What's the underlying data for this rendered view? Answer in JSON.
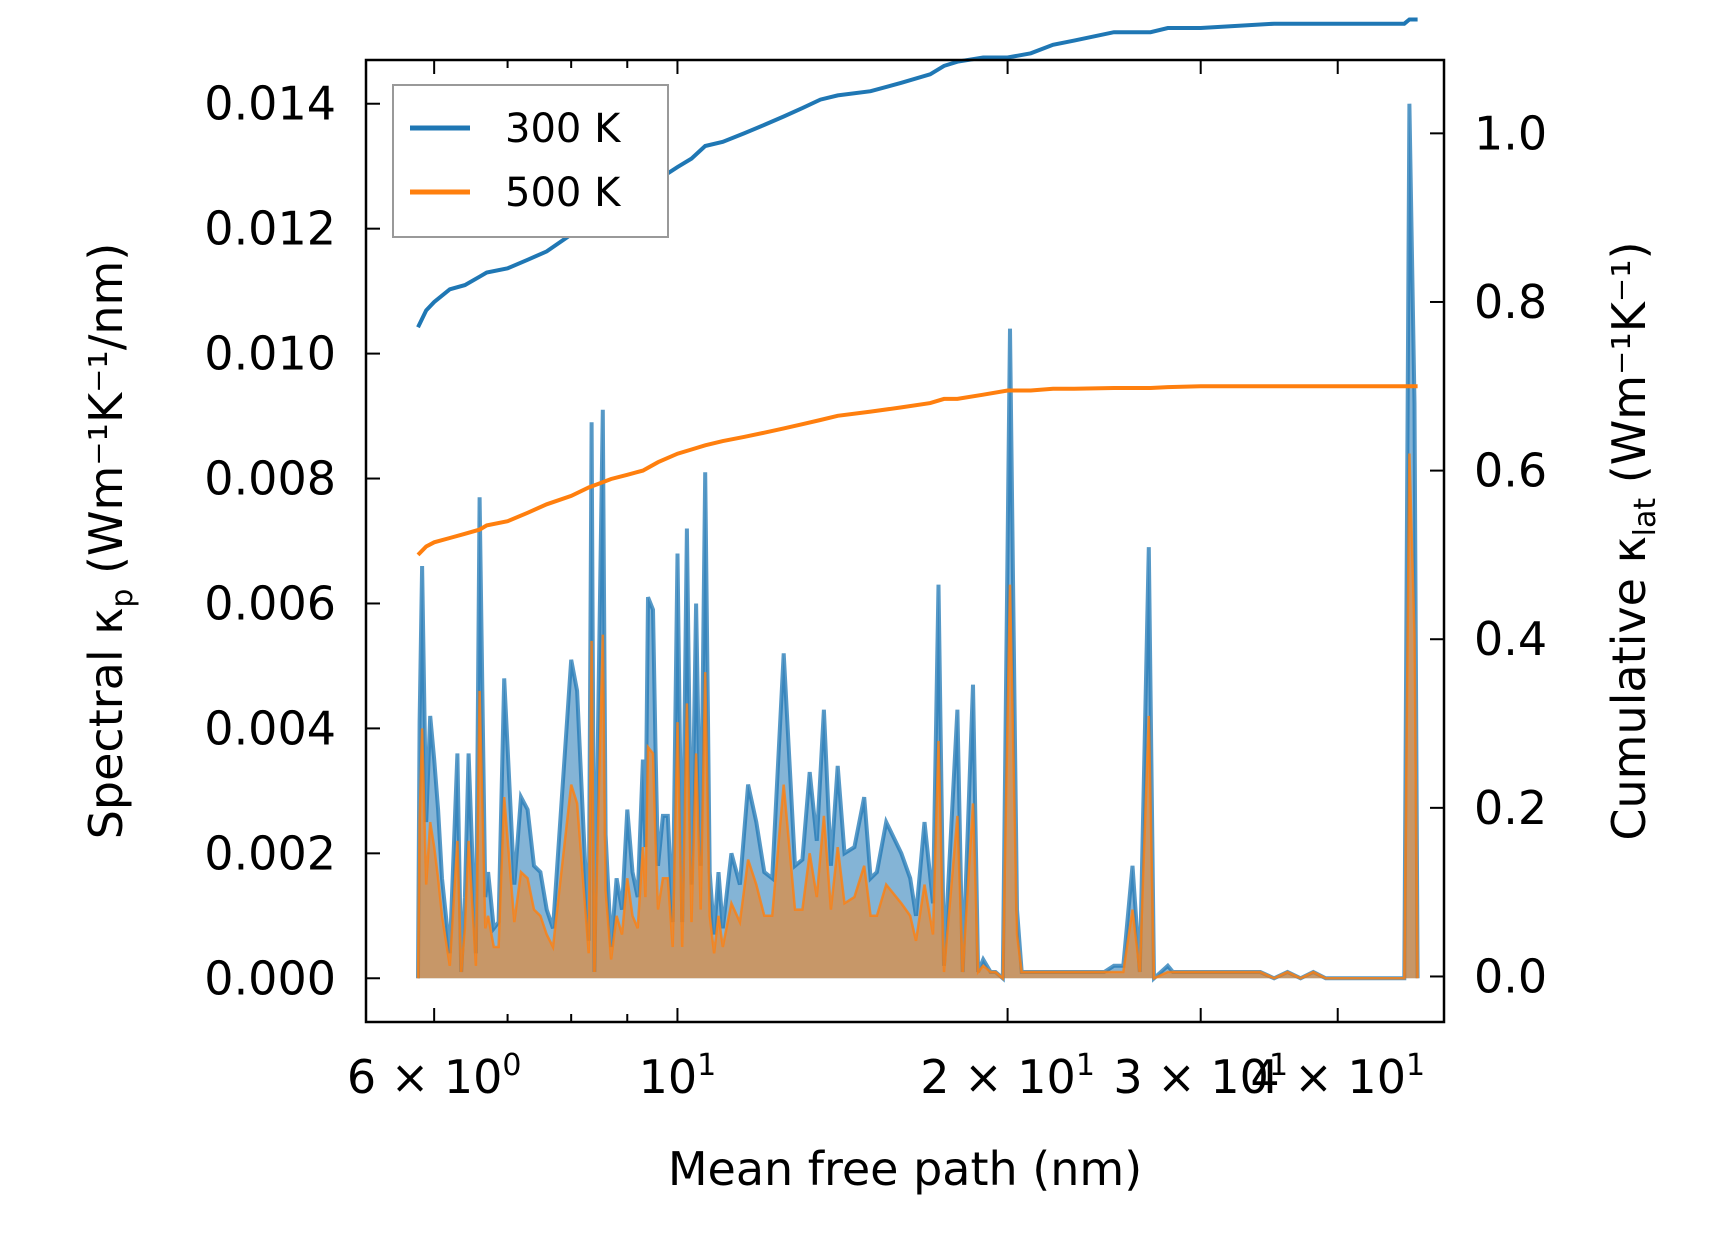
{
  "chart_data": {
    "type": "area+line",
    "xscale": "log",
    "xlabel": "Mean free path (nm)",
    "xlim": [
      5.2,
      50
    ],
    "x_ticks": [
      {
        "value": 6,
        "base": "6 × 10",
        "exp": "0"
      },
      {
        "value": 10,
        "base": "10",
        "exp": "1"
      },
      {
        "value": 20,
        "base": "2 × 10",
        "exp": "1"
      },
      {
        "value": 30,
        "base": "3 × 10",
        "exp": "1"
      },
      {
        "value": 40,
        "base": "4 × 10",
        "exp": "1"
      }
    ],
    "left_axis": {
      "label_main": "Spectral κ",
      "label_sub": "p",
      "label_units": " (Wm⁻¹K⁻¹/nm)",
      "ylim": [
        -0.0007,
        0.0147
      ],
      "ticks": [
        "0.000",
        "0.002",
        "0.004",
        "0.006",
        "0.008",
        "0.010",
        "0.012",
        "0.014"
      ]
    },
    "right_axis": {
      "label_main": "Cumulative κ",
      "label_sub": "lat",
      "label_units": " (Wm⁻¹K⁻¹)",
      "ylim": [
        -0.054,
        1.087
      ],
      "ticks": [
        "0.0",
        "0.2",
        "0.4",
        "0.6",
        "0.8",
        "1.0"
      ]
    },
    "legend": {
      "position": "top-left",
      "entries": [
        "300 K",
        "500 K"
      ]
    },
    "colors": {
      "300 K": "#1f77b4",
      "500 K": "#ff7f0e"
    },
    "spectral_x": [
      5.8,
      5.82,
      5.85,
      5.9,
      5.95,
      6.0,
      6.05,
      6.1,
      6.2,
      6.3,
      6.35,
      6.4,
      6.45,
      6.55,
      6.6,
      6.68,
      6.72,
      6.8,
      6.87,
      6.95,
      7.1,
      7.2,
      7.3,
      7.4,
      7.5,
      7.6,
      7.7,
      8.0,
      8.1,
      8.3,
      8.35,
      8.4,
      8.55,
      8.6,
      8.7,
      8.8,
      8.9,
      9.0,
      9.1,
      9.2,
      9.3,
      9.35,
      9.4,
      9.5,
      9.55,
      9.6,
      9.7,
      9.8,
      9.9,
      10.0,
      10.1,
      10.2,
      10.3,
      10.4,
      10.5,
      10.6,
      10.7,
      10.8,
      10.9,
      11.0,
      11.2,
      11.4,
      11.6,
      11.8,
      12.0,
      12.2,
      12.5,
      12.8,
      13.0,
      13.2,
      13.4,
      13.6,
      13.8,
      14.0,
      14.2,
      14.5,
      14.8,
      15.0,
      15.2,
      15.5,
      16.0,
      16.3,
      16.5,
      16.8,
      17.1,
      17.3,
      17.5,
      18.0,
      18.2,
      18.6,
      18.8,
      19.0,
      19.3,
      19.5,
      19.8,
      20.1,
      20.4,
      20.6,
      20.8,
      21.0,
      21.4,
      21.8,
      22.1,
      22.5,
      23.0,
      23.5,
      24.0,
      24.5,
      25.0,
      25.5,
      26.0,
      26.4,
      26.9,
      27.2,
      28.0,
      28.3,
      28.6,
      29.0,
      29.5,
      30.0,
      31.0,
      32.0,
      33.0,
      34.0,
      35.0,
      36.0,
      37.0,
      38.0,
      39.0,
      40.0,
      41.0,
      42.0,
      43.0,
      44.0,
      45.0,
      46.0,
      46.5,
      47.0,
      47.3
    ],
    "spectral_300K": [
      0,
      0.0041,
      0.0066,
      0.0025,
      0.0042,
      0.0035,
      0.0027,
      0.0016,
      0.0004,
      0.0036,
      0.0001,
      0.0013,
      0.0036,
      0.0004,
      0.0077,
      0.0013,
      0.0017,
      0.0008,
      0.0009,
      0.0048,
      0.0015,
      0.0029,
      0.0027,
      0.0018,
      0.0017,
      0.0011,
      0.0008,
      0.0051,
      0.0046,
      0.0006,
      0.0089,
      0.0001,
      0.0091,
      0.0023,
      0.0005,
      0.0016,
      0.0011,
      0.0027,
      0.0017,
      0.0013,
      0.0035,
      0.0021,
      0.0061,
      0.0059,
      0.0037,
      0.0018,
      0.0026,
      0.0026,
      0.0009,
      0.0068,
      0.0009,
      0.0072,
      0.0015,
      0.006,
      0.0018,
      0.0081,
      0.0017,
      0.0007,
      0.0017,
      0.0008,
      0.002,
      0.0015,
      0.0031,
      0.0025,
      0.0017,
      0.0016,
      0.0052,
      0.0018,
      0.0019,
      0.0033,
      0.0022,
      0.0043,
      0.0018,
      0.0034,
      0.002,
      0.0021,
      0.0029,
      0.0016,
      0.0017,
      0.0025,
      0.002,
      0.0016,
      0.001,
      0.0025,
      0.0012,
      0.0063,
      0.0002,
      0.0043,
      0.0001,
      0.0047,
      0.0001,
      0.0003,
      0.0001,
      0.0001,
      0.0,
      0.0104,
      0.0011,
      0.0001,
      0.0001,
      0.0001,
      0.0001,
      0.0001,
      0.0001,
      0.0001,
      0.0001,
      0.0001,
      0.0001,
      0.0001,
      0.0002,
      0.0002,
      0.0018,
      0.0001,
      0.0069,
      0.0,
      0.0002,
      0.0001,
      0.0001,
      0.0001,
      0.0001,
      0.0001,
      0.0001,
      0.0001,
      0.0001,
      0.0001,
      0.0,
      0.0001,
      0.0,
      0.0001,
      0.0,
      0.0,
      0.0,
      0.0,
      0.0,
      0.0,
      0.0,
      0.0,
      0.014,
      0.0092,
      0.0
    ],
    "spectral_500K": [
      0,
      0.0025,
      0.004,
      0.0015,
      0.0025,
      0.0021,
      0.0016,
      0.001,
      0.0002,
      0.0022,
      0.0001,
      0.0008,
      0.0022,
      0.0002,
      0.0046,
      0.0008,
      0.001,
      0.0005,
      0.0005,
      0.0029,
      0.0009,
      0.0017,
      0.0016,
      0.0011,
      0.001,
      0.0007,
      0.0005,
      0.0031,
      0.0028,
      0.0004,
      0.0054,
      0.0001,
      0.0055,
      0.0014,
      0.0003,
      0.001,
      0.0007,
      0.0016,
      0.001,
      0.0008,
      0.0021,
      0.0013,
      0.0037,
      0.0036,
      0.0022,
      0.0011,
      0.0016,
      0.0016,
      0.0005,
      0.0041,
      0.0005,
      0.0044,
      0.0009,
      0.0036,
      0.0011,
      0.0049,
      0.001,
      0.0004,
      0.001,
      0.0005,
      0.0012,
      0.0009,
      0.0019,
      0.0015,
      0.001,
      0.001,
      0.0031,
      0.0011,
      0.0011,
      0.002,
      0.0013,
      0.0026,
      0.0011,
      0.0021,
      0.0012,
      0.0013,
      0.0018,
      0.001,
      0.001,
      0.0015,
      0.0012,
      0.001,
      0.0006,
      0.0015,
      0.0007,
      0.0038,
      0.0001,
      0.0026,
      0.0001,
      0.0028,
      0.0001,
      0.0002,
      0.0001,
      0.0001,
      0.0,
      0.0063,
      0.0007,
      0.0001,
      0.0001,
      0.0001,
      0.0001,
      0.0001,
      0.0001,
      0.0001,
      0.0001,
      0.0001,
      0.0001,
      0.0001,
      0.0001,
      0.0001,
      0.0011,
      0.0001,
      0.0042,
      0.0,
      0.0001,
      0.0001,
      0.0001,
      0.0001,
      0.0001,
      0.0001,
      0.0001,
      0.0001,
      0.0001,
      0.0001,
      0.0,
      0.0001,
      0.0,
      0.0001,
      0.0,
      0.0,
      0.0,
      0.0,
      0.0,
      0.0,
      0.0,
      0.0,
      0.0084,
      0.0055,
      0.0
    ],
    "cumulative_x": [
      5.8,
      5.9,
      6.0,
      6.2,
      6.4,
      6.6,
      6.7,
      7.0,
      7.3,
      7.6,
      8.0,
      8.3,
      8.5,
      8.7,
      9.0,
      9.3,
      9.6,
      10.0,
      10.3,
      10.6,
      11.0,
      11.5,
      12.0,
      12.5,
      13.0,
      13.5,
      14.0,
      15.0,
      16.0,
      17.0,
      17.5,
      18.0,
      19.0,
      20.0,
      21.0,
      22.0,
      23.0,
      25.0,
      27.0,
      28.0,
      30.0,
      35.0,
      40.0,
      46.0,
      46.5,
      47.3
    ],
    "cumulative_300K": [
      0.77,
      0.79,
      0.8,
      0.815,
      0.82,
      0.83,
      0.835,
      0.84,
      0.85,
      0.86,
      0.88,
      0.89,
      0.9,
      0.91,
      0.915,
      0.93,
      0.945,
      0.96,
      0.97,
      0.985,
      0.99,
      1.0,
      1.01,
      1.02,
      1.03,
      1.04,
      1.045,
      1.05,
      1.06,
      1.07,
      1.08,
      1.085,
      1.09,
      1.09,
      1.095,
      1.105,
      1.11,
      1.12,
      1.12,
      1.125,
      1.125,
      1.13,
      1.13,
      1.13,
      1.135,
      1.135
    ],
    "cumulative_500K": [
      0.5,
      0.51,
      0.515,
      0.52,
      0.525,
      0.53,
      0.535,
      0.54,
      0.55,
      0.56,
      0.57,
      0.58,
      0.585,
      0.59,
      0.595,
      0.6,
      0.61,
      0.62,
      0.625,
      0.63,
      0.635,
      0.64,
      0.645,
      0.65,
      0.655,
      0.66,
      0.665,
      0.67,
      0.675,
      0.68,
      0.685,
      0.685,
      0.69,
      0.695,
      0.695,
      0.697,
      0.697,
      0.698,
      0.698,
      0.699,
      0.7,
      0.7,
      0.7,
      0.7,
      0.7,
      0.7
    ]
  }
}
